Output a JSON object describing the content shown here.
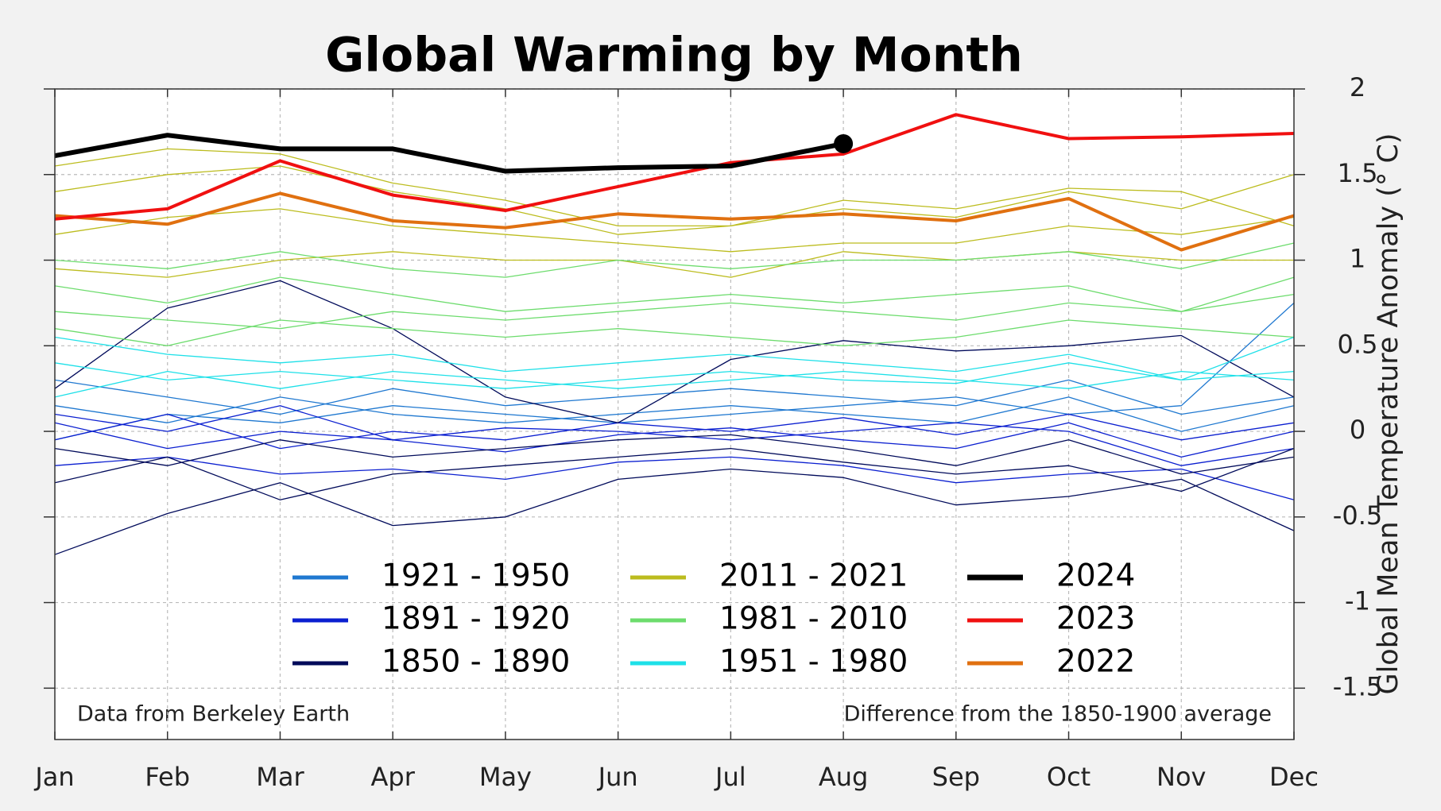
{
  "chart_data": {
    "type": "line",
    "title": "Global Warming by Month",
    "y_label": "Global Mean Temperature Anomaly (° C)",
    "annotations": [
      "Data from Berkeley Earth",
      "Difference from the 1850-1900 average"
    ],
    "categories": [
      "Jan",
      "Feb",
      "Mar",
      "Apr",
      "May",
      "Jun",
      "Jul",
      "Aug",
      "Sep",
      "Oct",
      "Nov",
      "Dec"
    ],
    "ylim": [
      -1.8,
      2
    ],
    "yticks": [
      -1.5,
      -1,
      -0.5,
      0,
      0.5,
      1,
      1.5,
      2
    ],
    "y_axis_side": "right",
    "grid": true,
    "series": [
      {
        "name": "1921 - 1950",
        "color": "#1f78d0",
        "width": 1.3,
        "values": [
          [
            0.15,
            0.05,
            0.2,
            0.1,
            0.05,
            0.1,
            0.15,
            0.1,
            0.05,
            0.2,
            0.0,
            0.15
          ],
          [
            0.3,
            0.2,
            0.1,
            0.25,
            0.15,
            0.2,
            0.25,
            0.2,
            0.15,
            0.3,
            0.1,
            0.2
          ],
          [
            -0.05,
            0.1,
            0.05,
            0.15,
            0.1,
            0.05,
            0.1,
            0.15,
            0.2,
            0.1,
            0.15,
            0.75
          ]
        ]
      },
      {
        "name": "1891 - 1920",
        "color": "#0b1fd0",
        "width": 1.3,
        "values": [
          [
            -0.2,
            -0.15,
            -0.25,
            -0.22,
            -0.28,
            -0.18,
            -0.15,
            -0.2,
            -0.3,
            -0.25,
            -0.22,
            -0.4
          ],
          [
            0.05,
            -0.1,
            0.0,
            -0.05,
            -0.12,
            -0.02,
            0.02,
            -0.05,
            -0.1,
            0.05,
            -0.15,
            0.0
          ],
          [
            -0.05,
            0.1,
            -0.1,
            0.0,
            -0.05,
            0.05,
            0.0,
            0.08,
            -0.02,
            0.1,
            -0.05,
            0.05
          ],
          [
            0.1,
            0.0,
            0.15,
            -0.05,
            0.02,
            0.0,
            -0.05,
            0.0,
            0.05,
            0.0,
            -0.2,
            -0.1
          ]
        ]
      },
      {
        "name": "1850 - 1890",
        "color": "#000a5a",
        "width": 1.3,
        "values": [
          [
            -0.72,
            -0.48,
            -0.3,
            -0.55,
            -0.5,
            -0.28,
            -0.22,
            -0.27,
            -0.43,
            -0.38,
            -0.28,
            -0.58
          ],
          [
            0.25,
            0.72,
            0.88,
            0.6,
            0.2,
            0.05,
            0.42,
            0.53,
            0.47,
            0.5,
            0.56,
            0.2
          ],
          [
            -0.1,
            -0.2,
            -0.05,
            -0.15,
            -0.1,
            -0.05,
            -0.02,
            -0.1,
            -0.2,
            -0.05,
            -0.25,
            -0.15
          ],
          [
            -0.3,
            -0.15,
            -0.4,
            -0.25,
            -0.2,
            -0.15,
            -0.1,
            -0.18,
            -0.25,
            -0.2,
            -0.35,
            -0.1
          ]
        ]
      },
      {
        "name": "2011 - 2021",
        "color": "#bcbc1e",
        "width": 1.3,
        "values": [
          [
            1.15,
            1.25,
            1.3,
            1.2,
            1.15,
            1.1,
            1.05,
            1.1,
            1.1,
            1.2,
            1.15,
            1.25
          ],
          [
            1.55,
            1.65,
            1.62,
            1.45,
            1.35,
            1.2,
            1.2,
            1.3,
            1.25,
            1.4,
            1.3,
            1.5
          ],
          [
            0.95,
            0.9,
            1.0,
            1.05,
            1.0,
            1.0,
            0.9,
            1.05,
            1.0,
            1.05,
            1.0,
            1.0
          ],
          [
            1.4,
            1.5,
            1.55,
            1.4,
            1.3,
            1.15,
            1.2,
            1.35,
            1.3,
            1.42,
            1.4,
            1.2
          ]
        ]
      },
      {
        "name": "1981 - 2010",
        "color": "#6ddc6d",
        "width": 1.3,
        "values": [
          [
            0.85,
            0.75,
            0.9,
            0.8,
            0.7,
            0.75,
            0.8,
            0.75,
            0.8,
            0.85,
            0.7,
            0.8
          ],
          [
            0.6,
            0.5,
            0.65,
            0.6,
            0.55,
            0.6,
            0.55,
            0.5,
            0.55,
            0.65,
            0.6,
            0.55
          ],
          [
            1.0,
            0.95,
            1.05,
            0.95,
            0.9,
            1.0,
            0.95,
            1.0,
            1.0,
            1.05,
            0.95,
            1.1
          ],
          [
            0.7,
            0.65,
            0.6,
            0.7,
            0.65,
            0.7,
            0.75,
            0.7,
            0.65,
            0.75,
            0.7,
            0.9
          ]
        ]
      },
      {
        "name": "1951 - 1980",
        "color": "#1ee0e8",
        "width": 1.3,
        "values": [
          [
            0.4,
            0.3,
            0.35,
            0.3,
            0.25,
            0.3,
            0.35,
            0.3,
            0.28,
            0.4,
            0.3,
            0.35
          ],
          [
            0.2,
            0.35,
            0.25,
            0.35,
            0.3,
            0.25,
            0.3,
            0.35,
            0.3,
            0.25,
            0.35,
            0.3
          ],
          [
            0.55,
            0.45,
            0.4,
            0.45,
            0.35,
            0.4,
            0.45,
            0.4,
            0.35,
            0.45,
            0.3,
            0.55
          ]
        ]
      },
      {
        "name": "2024",
        "color": "#000000",
        "width": 6,
        "marker": "end",
        "values": [
          1.61,
          1.73,
          1.65,
          1.65,
          1.52,
          1.54,
          1.55,
          1.68,
          null,
          null,
          null,
          null
        ]
      },
      {
        "name": "2023",
        "color": "#f01010",
        "width": 4,
        "values": [
          1.24,
          1.3,
          1.58,
          1.38,
          1.29,
          1.43,
          1.57,
          1.62,
          1.85,
          1.71,
          1.72,
          1.74
        ]
      },
      {
        "name": "2022",
        "color": "#e07010",
        "width": 4,
        "values": [
          1.26,
          1.21,
          1.39,
          1.23,
          1.19,
          1.27,
          1.24,
          1.27,
          1.23,
          1.36,
          1.06,
          1.26
        ]
      }
    ]
  }
}
